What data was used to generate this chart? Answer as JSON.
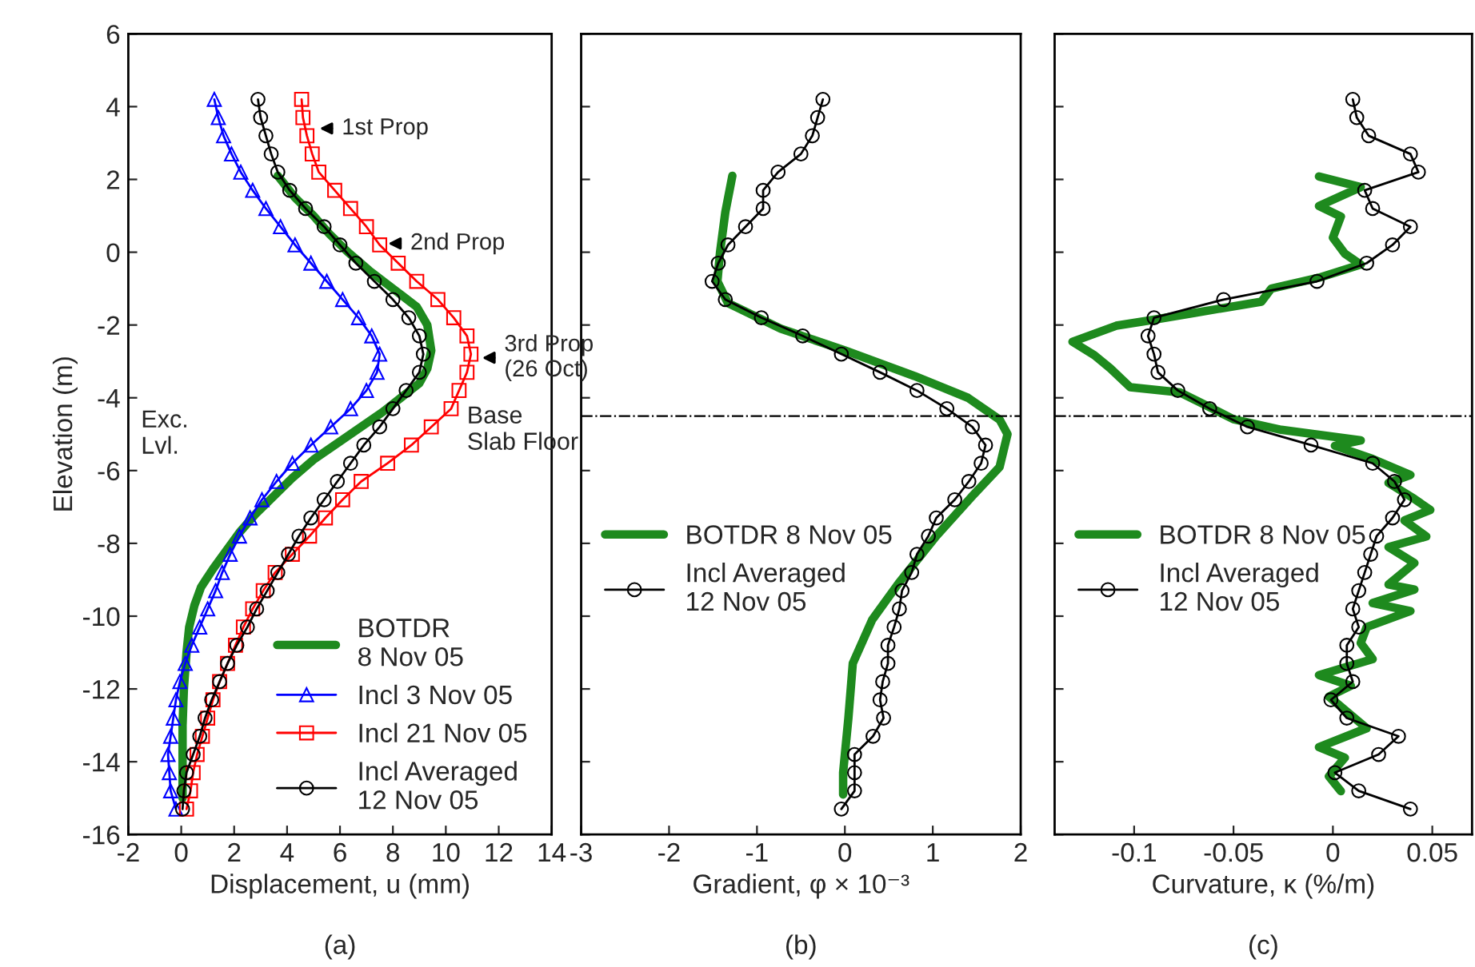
{
  "chart_data": [
    {
      "type": "line",
      "orientation": "horizontal",
      "xlabel": "Displacement, u (mm)",
      "ylabel": "Elevation (m)",
      "xlim": [
        -2,
        14
      ],
      "xticks": [
        -2,
        0,
        2,
        4,
        6,
        8,
        10,
        12,
        14
      ],
      "ylim": [
        -16,
        6
      ],
      "yticks": [
        -16,
        -14,
        -12,
        -10,
        -8,
        -6,
        -4,
        -2,
        0,
        2,
        4,
        6
      ],
      "legend": "bottom right",
      "grid": false,
      "annotations": [
        {
          "text": "1st Prop",
          "x": 5.06,
          "y": 3.4
        },
        {
          "text": "2nd Prop",
          "x": 7.65,
          "y": 0.24
        },
        {
          "text": "3rd Prop\n(26 Oct)",
          "x": 11.2,
          "y": -2.9
        },
        "Exc.\nLvl.",
        "Base\nSlab Floor",
        "(a)"
      ],
      "series": [
        {
          "name": "BOTDR\n8 Nov 05",
          "color": "#1e8a1e",
          "marker": "none",
          "x": [
            2.1,
            1.5,
            1.0,
            0.5,
            0,
            -0.5,
            -1.0,
            -1.5,
            -2.0,
            -2.7,
            -3.2,
            -3.6,
            -4.0,
            -4.4,
            -4.8,
            -5.2,
            -5.7,
            -6.2,
            -6.7,
            -7.2,
            -7.7,
            -8.2,
            -8.7,
            -9.2,
            -9.7,
            -10.3,
            -11.0,
            -12.0,
            -13.0,
            -14.0,
            -15.0
          ],
          "values": [
            3.65,
            4.3,
            5.0,
            5.6,
            6.3,
            7.1,
            8.0,
            8.9,
            9.3,
            9.45,
            9.3,
            9.0,
            8.3,
            7.6,
            6.8,
            6.0,
            5.0,
            4.2,
            3.5,
            2.8,
            2.2,
            1.7,
            1.2,
            0.75,
            0.5,
            0.3,
            0.2,
            0.1,
            0.05,
            0.05,
            0.05
          ]
        },
        {
          "name": "Incl 3 Nov 05",
          "color": "#0000ff",
          "marker": "triangle",
          "x": [
            4.2,
            3.7,
            3.2,
            2.7,
            2.2,
            1.7,
            1.2,
            0.7,
            0.2,
            -0.3,
            -0.8,
            -1.3,
            -1.8,
            -2.3,
            -2.8,
            -3.3,
            -3.8,
            -4.3,
            -4.8,
            -5.3,
            -5.8,
            -6.3,
            -6.8,
            -7.3,
            -7.8,
            -8.3,
            -8.8,
            -9.3,
            -9.8,
            -10.3,
            -10.8,
            -11.3,
            -11.8,
            -12.3,
            -12.8,
            -13.3,
            -13.8,
            -14.3,
            -14.8,
            -15.3
          ],
          "values": [
            1.25,
            1.4,
            1.6,
            1.9,
            2.25,
            2.7,
            3.2,
            3.75,
            4.3,
            4.9,
            5.5,
            6.1,
            6.7,
            7.2,
            7.5,
            7.4,
            7.0,
            6.4,
            5.65,
            4.9,
            4.2,
            3.6,
            3.05,
            2.6,
            2.2,
            1.85,
            1.55,
            1.3,
            1.0,
            0.7,
            0.4,
            0.15,
            -0.05,
            -0.2,
            -0.3,
            -0.4,
            -0.5,
            -0.45,
            -0.4,
            -0.2
          ]
        },
        {
          "name": "Incl 21 Nov 05",
          "color": "#ff0000",
          "marker": "square",
          "x": [
            4.2,
            3.7,
            3.2,
            2.7,
            2.2,
            1.7,
            1.2,
            0.7,
            0.2,
            -0.3,
            -0.8,
            -1.3,
            -1.8,
            -2.3,
            -2.8,
            -3.3,
            -3.8,
            -4.3,
            -4.8,
            -5.3,
            -5.8,
            -6.3,
            -6.8,
            -7.3,
            -7.8,
            -8.3,
            -8.8,
            -9.3,
            -9.8,
            -10.3,
            -10.8,
            -11.3,
            -11.8,
            -12.3,
            -12.8,
            -13.3,
            -13.8,
            -14.3,
            -14.8,
            -15.3
          ],
          "values": [
            4.55,
            4.6,
            4.75,
            4.95,
            5.2,
            5.8,
            6.4,
            7.0,
            7.5,
            8.2,
            8.9,
            9.7,
            10.3,
            10.8,
            10.95,
            10.8,
            10.5,
            10.2,
            9.45,
            8.7,
            7.8,
            6.8,
            6.1,
            5.45,
            4.85,
            4.2,
            3.55,
            3.1,
            2.7,
            2.35,
            2.05,
            1.75,
            1.45,
            1.2,
            1.0,
            0.8,
            0.6,
            0.45,
            0.35,
            0.2
          ]
        },
        {
          "name": "Incl Averaged\n12 Nov 05",
          "color": "#000000",
          "marker": "circle",
          "x": [
            4.2,
            3.7,
            3.2,
            2.7,
            2.2,
            1.7,
            1.2,
            0.7,
            0.2,
            -0.3,
            -0.8,
            -1.3,
            -1.8,
            -2.3,
            -2.8,
            -3.3,
            -3.8,
            -4.3,
            -4.8,
            -5.3,
            -5.8,
            -6.3,
            -6.8,
            -7.3,
            -7.8,
            -8.3,
            -8.8,
            -9.3,
            -9.8,
            -10.3,
            -10.8,
            -11.3,
            -11.8,
            -12.3,
            -12.8,
            -13.3,
            -13.8,
            -14.3,
            -14.8,
            -15.3
          ],
          "values": [
            2.9,
            3.0,
            3.2,
            3.4,
            3.65,
            4.1,
            4.7,
            5.4,
            6.0,
            6.6,
            7.3,
            8.0,
            8.6,
            9.0,
            9.15,
            9.0,
            8.5,
            8.0,
            7.5,
            6.9,
            6.4,
            5.9,
            5.4,
            4.9,
            4.45,
            4.05,
            3.65,
            3.25,
            2.85,
            2.5,
            2.1,
            1.75,
            1.45,
            1.15,
            0.9,
            0.7,
            0.45,
            0.2,
            0.1,
            0.05
          ]
        }
      ]
    },
    {
      "type": "line",
      "orientation": "horizontal",
      "xlabel": "Gradient, φ × 10⁻³",
      "xlim": [
        -3,
        2
      ],
      "xticks": [
        -3,
        -2,
        -1,
        0,
        1,
        2
      ],
      "ylim": [
        -16,
        6
      ],
      "yticks": [
        -16,
        -14,
        -12,
        -10,
        -8,
        -6,
        -4,
        -2,
        0,
        2,
        4,
        6
      ],
      "tick_labels": "x",
      "legend": "left",
      "grid": false,
      "ref_lines": [
        {
          "axis": "y",
          "value": -4.5,
          "color": "#000000",
          "line_style": "dashdot"
        }
      ],
      "annotations": [
        "(b)"
      ],
      "series": [
        {
          "name": "BOTDR 8 Nov 05",
          "color": "#1e8a1e",
          "marker": "none",
          "x": [
            2.1,
            1.1,
            0,
            -0.8,
            -1.4,
            -2.1,
            -2.7,
            -3.4,
            -4.0,
            -4.6,
            -5.0,
            -5.9,
            -6.7,
            -7.8,
            -9.1,
            -10.1,
            -11.3,
            -12.8,
            -14.3,
            -14.9
          ],
          "values": [
            -1.28,
            -1.36,
            -1.42,
            -1.45,
            -1.33,
            -0.73,
            0,
            0.79,
            1.4,
            1.76,
            1.85,
            1.76,
            1.45,
            1.04,
            0.61,
            0.31,
            0.09,
            0.04,
            -0.02,
            -0.02
          ]
        },
        {
          "name": "Incl Averaged\n12 Nov 05",
          "color": "#000000",
          "marker": "circle",
          "x": [
            4.2,
            3.7,
            3.2,
            2.7,
            2.2,
            1.7,
            1.2,
            0.7,
            0.2,
            -0.3,
            -0.8,
            -1.3,
            -1.8,
            -2.3,
            -2.8,
            -3.3,
            -3.8,
            -4.3,
            -4.8,
            -5.3,
            -5.8,
            -6.3,
            -6.8,
            -7.3,
            -7.8,
            -8.3,
            -8.8,
            -9.3,
            -9.8,
            -10.3,
            -10.8,
            -11.3,
            -11.8,
            -12.3,
            -12.8,
            -13.3,
            -13.8,
            -14.3,
            -14.8,
            -15.3
          ],
          "values": [
            -0.25,
            -0.31,
            -0.37,
            -0.5,
            -0.76,
            -0.93,
            -0.93,
            -1.13,
            -1.33,
            -1.44,
            -1.51,
            -1.36,
            -0.95,
            -0.48,
            -0.04,
            0.4,
            0.82,
            1.16,
            1.45,
            1.6,
            1.55,
            1.41,
            1.25,
            1.04,
            0.95,
            0.82,
            0.76,
            0.65,
            0.62,
            0.56,
            0.49,
            0.49,
            0.43,
            0.4,
            0.44,
            0.32,
            0.11,
            0.11,
            0.11,
            -0.04
          ]
        }
      ]
    },
    {
      "type": "line",
      "orientation": "horizontal",
      "xlabel": "Curvature, κ (%/m)",
      "xlim": [
        -0.14,
        0.07
      ],
      "xticks": [
        -0.1,
        -0.05,
        0,
        0.05
      ],
      "ylim": [
        -16,
        6
      ],
      "yticks": [
        -16,
        -14,
        -12,
        -10,
        -8,
        -6,
        -4,
        -2,
        0,
        2,
        4,
        6
      ],
      "tick_labels": "x",
      "legend": "left",
      "grid": false,
      "ref_lines": [
        {
          "axis": "y",
          "value": -4.5,
          "color": "#000000",
          "line_style": "dashdot"
        }
      ],
      "annotations": [
        "(c)"
      ],
      "series": [
        {
          "name": "BOTDR 8 Nov 05",
          "color": "#1e8a1e",
          "marker": "none",
          "x": [
            2.08,
            1.79,
            1.27,
            0.98,
            0.4,
            -0.04,
            -0.34,
            -0.7,
            -1.0,
            -1.36,
            -1.66,
            -1.88,
            -2.02,
            -2.46,
            -2.83,
            -3.19,
            -3.71,
            -3.85,
            -4.15,
            -4.59,
            -4.88,
            -5.17,
            -5.32,
            -5.68,
            -6.12,
            -6.34,
            -6.78,
            -7.08,
            -7.37,
            -7.81,
            -8.1,
            -8.54,
            -9.13,
            -9.27,
            -9.64,
            -9.86,
            -10.3,
            -10.74,
            -11.18,
            -11.62,
            -11.91,
            -12.21,
            -13.08,
            -13.6,
            -13.89,
            -14.4,
            -14.81
          ],
          "values": [
            -0.007,
            0.014,
            -0.007,
            0.004,
            0.0,
            0.006,
            0.014,
            -0.007,
            -0.031,
            -0.036,
            -0.069,
            -0.093,
            -0.109,
            -0.131,
            -0.12,
            -0.112,
            -0.102,
            -0.077,
            -0.066,
            -0.05,
            -0.026,
            0.014,
            0.001,
            0.02,
            0.039,
            0.028,
            0.041,
            0.049,
            0.036,
            0.047,
            0.028,
            0.041,
            0.028,
            0.041,
            0.02,
            0.039,
            0.017,
            0.014,
            0.02,
            -0.007,
            0.009,
            -0.002,
            0.017,
            -0.007,
            0.006,
            -0.002,
            0.004
          ]
        },
        {
          "name": "Incl Averaged\n12 Nov 05",
          "color": "#000000",
          "marker": "circle",
          "x": [
            4.2,
            3.7,
            3.2,
            2.7,
            2.2,
            1.7,
            1.2,
            0.7,
            0.2,
            -0.3,
            -0.8,
            -1.3,
            -1.8,
            -2.3,
            -2.8,
            -3.3,
            -3.8,
            -4.3,
            -4.8,
            -5.3,
            -5.8,
            -6.3,
            -6.8,
            -7.3,
            -7.8,
            -8.3,
            -8.8,
            -9.3,
            -9.8,
            -10.3,
            -10.8,
            -11.3,
            -11.8,
            -12.3,
            -12.8,
            -13.3,
            -13.8,
            -14.3,
            -14.8,
            -15.3
          ],
          "values": [
            0.01,
            0.012,
            0.018,
            0.039,
            0.043,
            0.016,
            0.02,
            0.039,
            0.03,
            0.017,
            -0.008,
            -0.055,
            -0.09,
            -0.093,
            -0.09,
            -0.088,
            -0.078,
            -0.062,
            -0.043,
            -0.011,
            0.02,
            0.031,
            0.036,
            0.03,
            0.022,
            0.019,
            0.016,
            0.013,
            0.01,
            0.013,
            0.007,
            0.007,
            0.01,
            -0.001,
            0.007,
            0.033,
            0.023,
            0.001,
            0.013,
            0.039
          ]
        }
      ]
    }
  ]
}
